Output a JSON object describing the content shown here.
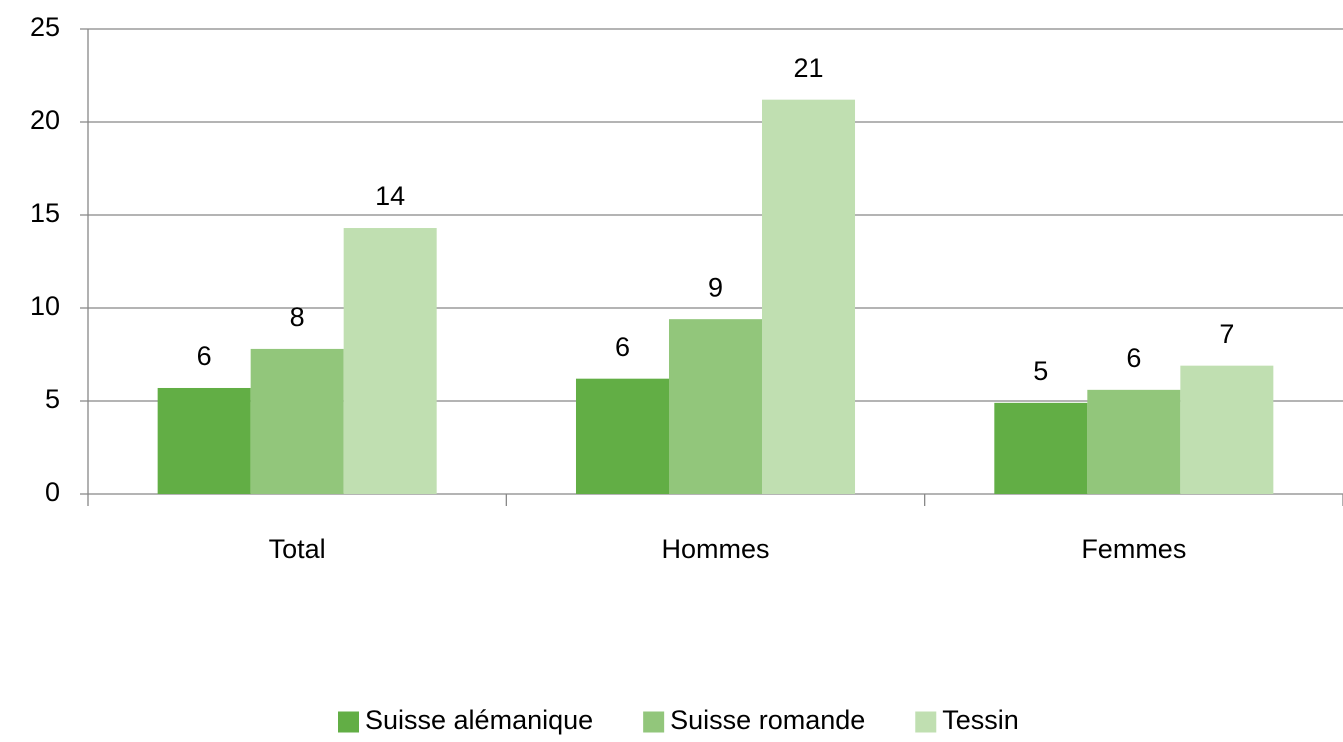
{
  "chart_data": {
    "type": "bar",
    "categories": [
      "Total",
      "Hommes",
      "Femmes"
    ],
    "series": [
      {
        "name": "Suisse alémanique",
        "color": "#62ae45",
        "values": [
          5.7,
          6.2,
          4.9
        ],
        "value_labels": [
          "6",
          "6",
          "5"
        ]
      },
      {
        "name": "Suisse romande",
        "color": "#92c67b",
        "values": [
          7.8,
          9.4,
          5.6
        ],
        "value_labels": [
          "8",
          "9",
          "6"
        ]
      },
      {
        "name": "Tessin",
        "color": "#c0dfb1",
        "values": [
          14.3,
          21.2,
          6.9
        ],
        "value_labels": [
          "14",
          "21",
          "7"
        ]
      }
    ],
    "ylim": [
      0,
      25
    ],
    "yticks": [
      0,
      5,
      10,
      15,
      20,
      25
    ],
    "grid": true,
    "legend": "bottom"
  }
}
